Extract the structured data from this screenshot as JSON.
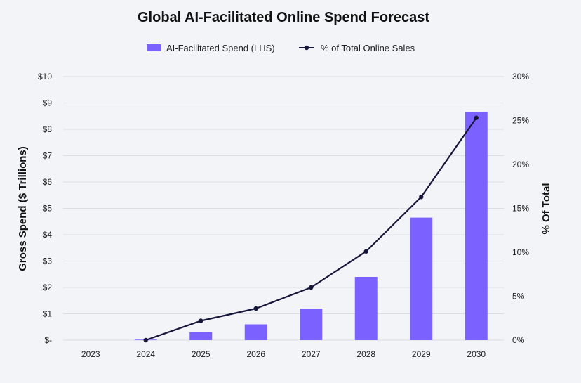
{
  "chart_data": {
    "type": "bar",
    "title": "Global AI-Facilitated Online Spend Forecast",
    "categories": [
      "2023",
      "2024",
      "2025",
      "2026",
      "2027",
      "2028",
      "2029",
      "2030"
    ],
    "series": [
      {
        "name": "AI-Facilitated Spend (LHS)",
        "type": "bar",
        "axis": "left",
        "color": "#7b61ff",
        "values": [
          0,
          0.02,
          0.3,
          0.6,
          1.2,
          2.4,
          4.65,
          8.65
        ]
      },
      {
        "name": "% of Total Online Sales",
        "type": "line",
        "axis": "right",
        "color": "#16163a",
        "start_index": 1,
        "values": [
          null,
          0,
          2.2,
          3.6,
          6.0,
          10.1,
          16.3,
          25.3
        ]
      }
    ],
    "ylabel": "Gross Spend ($ Trillions)",
    "ylim": [
      0,
      10
    ],
    "yticks": [
      "$-",
      "$1",
      "$2",
      "$3",
      "$4",
      "$5",
      "$6",
      "$7",
      "$8",
      "$9",
      "$10"
    ],
    "y2label": "% Of Total",
    "y2lim": [
      0,
      30
    ],
    "y2ticks": [
      "0%",
      "5%",
      "10%",
      "15%",
      "20%",
      "25%",
      "30%"
    ],
    "legend": "top-center",
    "grid": true
  }
}
